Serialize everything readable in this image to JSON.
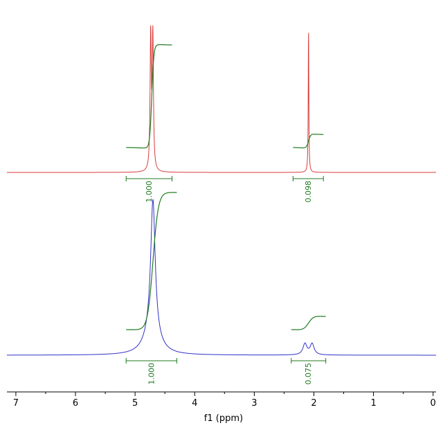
{
  "chart_data": {
    "type": "line",
    "xlabel": "f1 (ppm)",
    "xlim": [
      7.15,
      -0.05
    ],
    "x_reversed": true,
    "x_ticks": [
      7,
      6,
      5,
      4,
      3,
      2,
      1,
      0
    ],
    "x_tick_labels": [
      "7",
      "6",
      "5",
      "4",
      "3",
      "2",
      "1",
      "0"
    ],
    "grid": false,
    "colors": {
      "top_spectrum": "#d93a3a",
      "bottom_spectrum": "#3030c8",
      "integral": "#1e7a1e"
    },
    "series": [
      {
        "peaks": [
          {
            "center_ppm": 4.72,
            "relative_height": 1.2,
            "half_width_ppm": 0.012,
            "shape": "doublet"
          },
          {
            "center_ppm": 2.09,
            "relative_height": 0.74,
            "half_width_ppm": 0.006,
            "shape": "singlet"
          }
        ],
        "integrals": [
          {
            "from_ppm": 5.15,
            "to_ppm": 4.38,
            "value": "1.000"
          },
          {
            "from_ppm": 2.35,
            "to_ppm": 1.84,
            "value": "0.098"
          }
        ]
      },
      {
        "peaks": [
          {
            "center_ppm": 4.7,
            "relative_height": 1.05,
            "half_width_ppm": 0.045,
            "shape": "broad"
          },
          {
            "center_ppm": 2.09,
            "relative_height": 0.13,
            "half_width_ppm": 0.04,
            "shape": "doublet"
          }
        ],
        "integrals": [
          {
            "from_ppm": 5.15,
            "to_ppm": 4.3,
            "value": "1.000"
          },
          {
            "from_ppm": 2.38,
            "to_ppm": 1.8,
            "value": "0.075"
          }
        ]
      }
    ]
  }
}
